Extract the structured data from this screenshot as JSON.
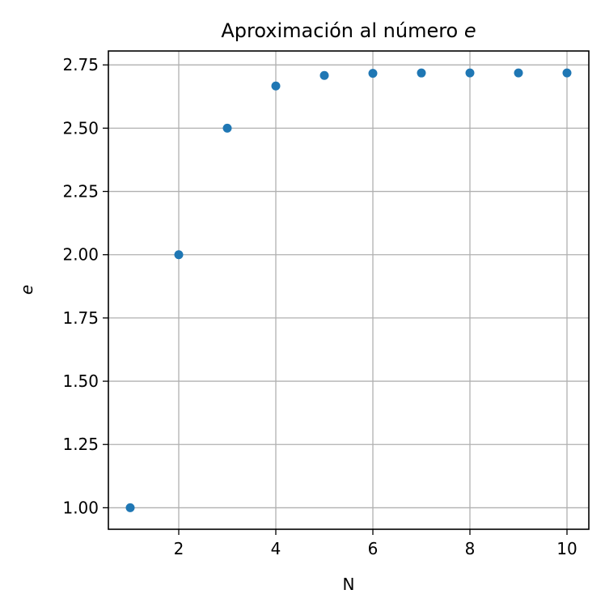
{
  "chart_data": {
    "type": "scatter",
    "title": "Aproximación al número ",
    "title_symbol": "e",
    "xlabel": "N",
    "ylabel": "e",
    "x": [
      1,
      2,
      3,
      4,
      5,
      6,
      7,
      8,
      9,
      10
    ],
    "y": [
      1.0,
      2.0,
      2.5,
      2.6667,
      2.7083,
      2.7167,
      2.7181,
      2.7183,
      2.7183,
      2.7183
    ],
    "xlim": [
      0.55,
      10.45
    ],
    "ylim": [
      0.915,
      2.805
    ],
    "xticks": [
      2,
      4,
      6,
      8,
      10
    ],
    "xtick_labels": [
      "2",
      "4",
      "6",
      "8",
      "10"
    ],
    "yticks": [
      1.0,
      1.25,
      1.5,
      1.75,
      2.0,
      2.25,
      2.5,
      2.75
    ],
    "ytick_labels": [
      "1.00",
      "1.25",
      "1.50",
      "1.75",
      "2.00",
      "2.25",
      "2.50",
      "2.75"
    ],
    "grid": true,
    "marker_color": "#1f77b4"
  }
}
